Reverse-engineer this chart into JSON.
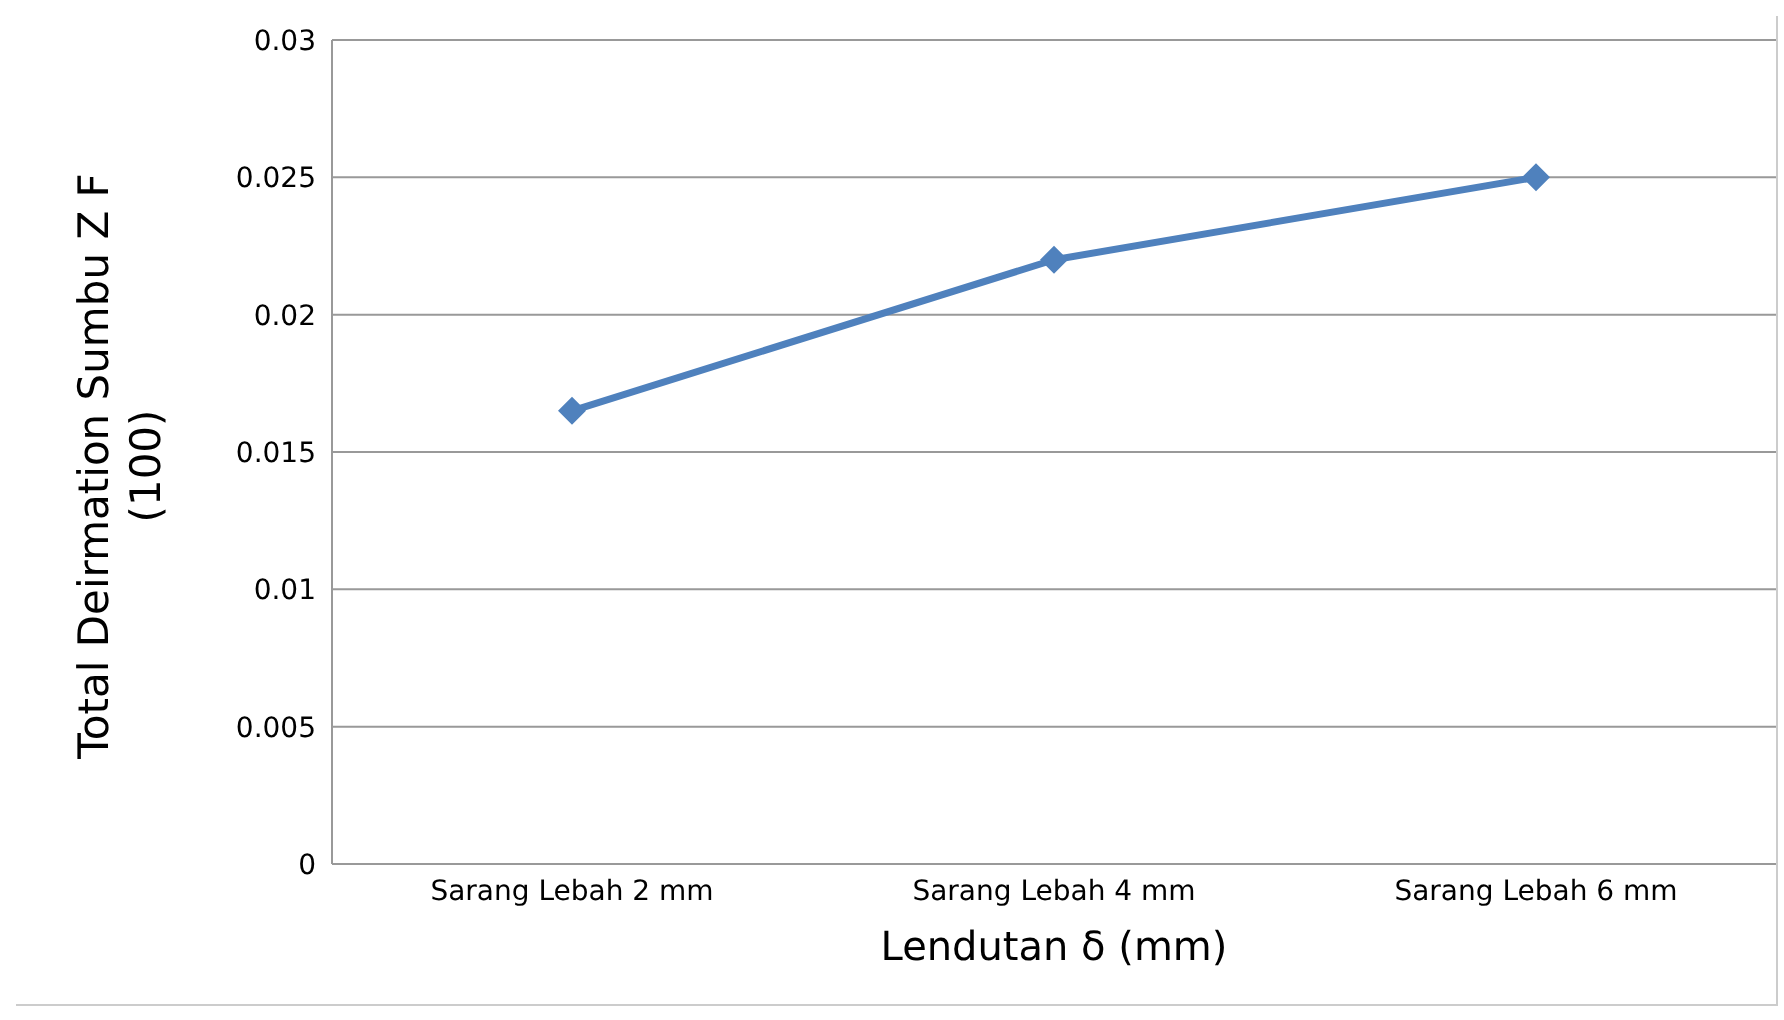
{
  "chart_data": {
    "type": "line",
    "xlabel": "Lendutan δ (mm)",
    "ylabel": "Total Deirmation Sumbu Z F (100)",
    "categories": [
      "Sarang Lebah 2 mm",
      "Sarang Lebah 4 mm",
      "Sarang Lebah 6 mm"
    ],
    "series": [
      {
        "color": "#4f81bd",
        "values": [
          0.0165,
          0.022,
          0.025
        ]
      }
    ],
    "ylim": [
      0,
      0.03
    ],
    "yticks": [
      0,
      0.005,
      0.01,
      0.015,
      0.02,
      0.025,
      0.03
    ],
    "grid": "y",
    "legend": false,
    "marker": "diamond",
    "line_style": "solid"
  }
}
